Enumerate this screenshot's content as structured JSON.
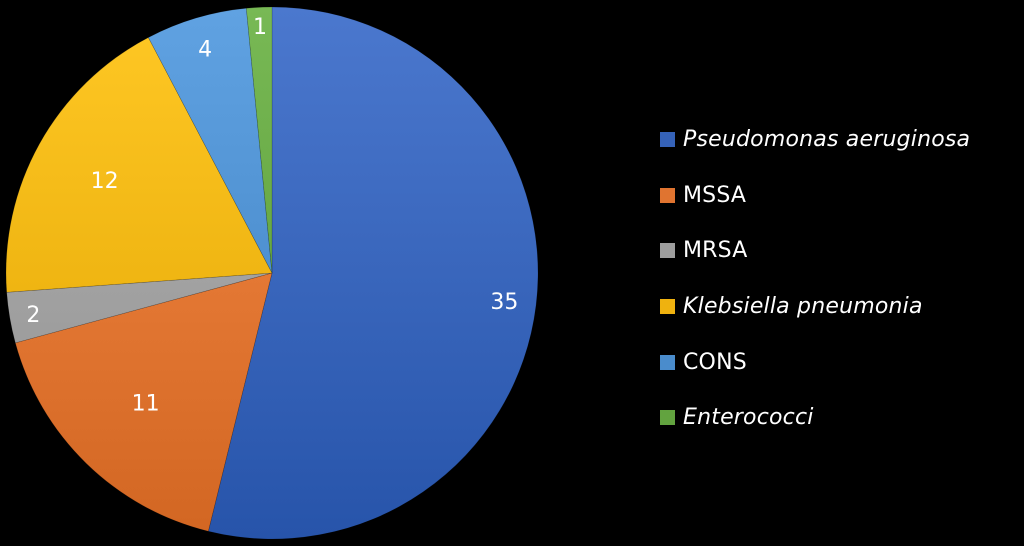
{
  "chart_data": {
    "type": "pie",
    "title": "",
    "categories": [
      "Pseudomonas aeruginosa",
      "MSSA",
      "MRSA",
      "Klebsiella pneumonia",
      "CONS",
      "Enterococci"
    ],
    "values": [
      35,
      11,
      2,
      12,
      4,
      1
    ],
    "colors": [
      "#3562b8",
      "#e07430",
      "#9e9e9e",
      "#efb20f",
      "#4a8ccc",
      "#62a33f"
    ],
    "italic": [
      true,
      false,
      false,
      true,
      false,
      true
    ],
    "data_labels": [
      "35",
      "11",
      "2",
      "12",
      "4",
      "1"
    ],
    "legend_position": "right",
    "start_angle_deg": 0,
    "direction": "clockwise"
  },
  "legend": {
    "items": [
      {
        "label": "Pseudomonas aeruginosa",
        "color": "#3562b8"
      },
      {
        "label": "MSSA",
        "color": "#e07430"
      },
      {
        "label": "MRSA",
        "color": "#9e9e9e"
      },
      {
        "label": "Klebsiella pneumonia",
        "color": "#efb20f"
      },
      {
        "label": "CONS",
        "color": "#4a8ccc"
      },
      {
        "label": "Enterococci",
        "color": "#62a33f"
      }
    ]
  }
}
